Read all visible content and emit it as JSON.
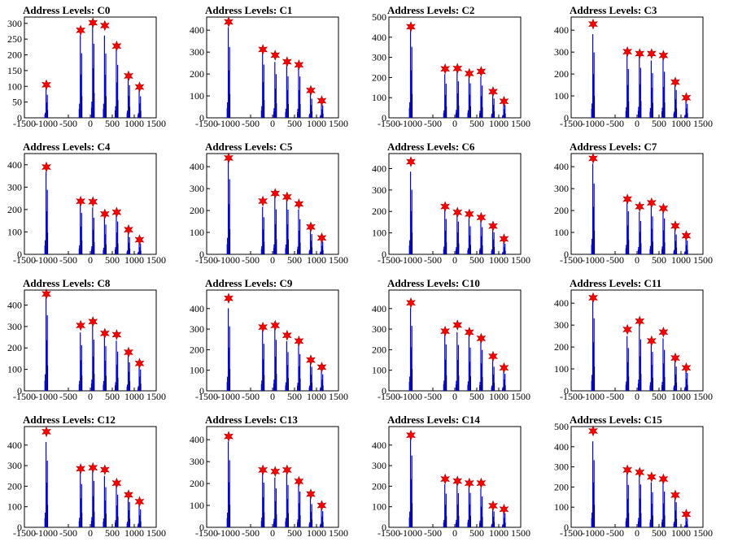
{
  "chart_data": [
    {
      "type": "histogram",
      "title": "Address Levels: C0",
      "xlim": [
        -1500,
        1500
      ],
      "ylim": [
        0,
        320
      ],
      "yticks": [
        0,
        50,
        100,
        150,
        200,
        250,
        300
      ],
      "xtick_labels": [
        "-1500",
        "-1000",
        "-500",
        "0",
        "500",
        "1000",
        "1500"
      ],
      "peaks": [
        {
          "x": -1000,
          "y": 105
        },
        {
          "x": -220,
          "y": 278
        },
        {
          "x": 60,
          "y": 302
        },
        {
          "x": 330,
          "y": 293
        },
        {
          "x": 600,
          "y": 228
        },
        {
          "x": 870,
          "y": 133
        },
        {
          "x": 1120,
          "y": 98
        }
      ]
    },
    {
      "type": "histogram",
      "title": "Address Levels: C1",
      "xlim": [
        -1500,
        1500
      ],
      "ylim": [
        0,
        460
      ],
      "yticks": [
        0,
        100,
        200,
        300,
        400
      ],
      "xtick_labels": [
        "-1500",
        "-1000",
        "-500",
        "0",
        "500",
        "1000",
        "1500"
      ],
      "peaks": [
        {
          "x": -1000,
          "y": 438
        },
        {
          "x": -220,
          "y": 312
        },
        {
          "x": 60,
          "y": 286
        },
        {
          "x": 330,
          "y": 256
        },
        {
          "x": 600,
          "y": 242
        },
        {
          "x": 870,
          "y": 125
        },
        {
          "x": 1120,
          "y": 78
        }
      ]
    },
    {
      "type": "histogram",
      "title": "Address Levels: C2",
      "xlim": [
        -1500,
        1500
      ],
      "ylim": [
        0,
        500
      ],
      "yticks": [
        0,
        100,
        200,
        300,
        400,
        500
      ],
      "xtick_labels": [
        "-1500",
        "-1000",
        "-500",
        "0",
        "500",
        "1000",
        "1500"
      ],
      "peaks": [
        {
          "x": -1000,
          "y": 452
        },
        {
          "x": -220,
          "y": 243
        },
        {
          "x": 60,
          "y": 245
        },
        {
          "x": 330,
          "y": 220
        },
        {
          "x": 600,
          "y": 230
        },
        {
          "x": 870,
          "y": 130
        },
        {
          "x": 1120,
          "y": 82
        }
      ]
    },
    {
      "type": "histogram",
      "title": "Address Levels: C3",
      "xlim": [
        -1500,
        1500
      ],
      "ylim": [
        0,
        460
      ],
      "yticks": [
        0,
        100,
        200,
        300,
        400
      ],
      "xtick_labels": [
        "-1500",
        "-1000",
        "-500",
        "0",
        "500",
        "1000",
        "1500"
      ],
      "peaks": [
        {
          "x": -1000,
          "y": 428
        },
        {
          "x": -220,
          "y": 302
        },
        {
          "x": 60,
          "y": 293
        },
        {
          "x": 330,
          "y": 293
        },
        {
          "x": 600,
          "y": 285
        },
        {
          "x": 870,
          "y": 163
        },
        {
          "x": 1120,
          "y": 92
        }
      ]
    },
    {
      "type": "histogram",
      "title": "Address Levels: C4",
      "xlim": [
        -1500,
        1500
      ],
      "ylim": [
        0,
        450
      ],
      "yticks": [
        0,
        100,
        200,
        300,
        400
      ],
      "xtick_labels": [
        "-1500",
        "-1000",
        "-500",
        "0",
        "500",
        "1000",
        "1500"
      ],
      "peaks": [
        {
          "x": -1000,
          "y": 390
        },
        {
          "x": -220,
          "y": 237
        },
        {
          "x": 60,
          "y": 235
        },
        {
          "x": 330,
          "y": 180
        },
        {
          "x": 600,
          "y": 188
        },
        {
          "x": 870,
          "y": 110
        },
        {
          "x": 1120,
          "y": 65
        }
      ]
    },
    {
      "type": "histogram",
      "title": "Address Levels: C5",
      "xlim": [
        -1500,
        1500
      ],
      "ylim": [
        0,
        460
      ],
      "yticks": [
        0,
        100,
        200,
        300,
        400
      ],
      "xtick_labels": [
        "-1500",
        "-1000",
        "-500",
        "0",
        "500",
        "1000",
        "1500"
      ],
      "peaks": [
        {
          "x": -1000,
          "y": 440
        },
        {
          "x": -220,
          "y": 243
        },
        {
          "x": 60,
          "y": 278
        },
        {
          "x": 330,
          "y": 262
        },
        {
          "x": 600,
          "y": 230
        },
        {
          "x": 870,
          "y": 125
        },
        {
          "x": 1120,
          "y": 75
        }
      ]
    },
    {
      "type": "histogram",
      "title": "Address Levels: C6",
      "xlim": [
        -1500,
        1500
      ],
      "ylim": [
        0,
        470
      ],
      "yticks": [
        0,
        100,
        200,
        300,
        400
      ],
      "xtick_labels": [
        "-1500",
        "-1000",
        "-500",
        "0",
        "500",
        "1000",
        "1500"
      ],
      "peaks": [
        {
          "x": -1000,
          "y": 432
        },
        {
          "x": -220,
          "y": 223
        },
        {
          "x": 60,
          "y": 196
        },
        {
          "x": 330,
          "y": 188
        },
        {
          "x": 600,
          "y": 172
        },
        {
          "x": 870,
          "y": 132
        },
        {
          "x": 1120,
          "y": 72
        }
      ]
    },
    {
      "type": "histogram",
      "title": "Address Levels: C7",
      "xlim": [
        -1500,
        1500
      ],
      "ylim": [
        0,
        460
      ],
      "yticks": [
        0,
        100,
        200,
        300,
        400
      ],
      "xtick_labels": [
        "-1500",
        "-1000",
        "-500",
        "0",
        "500",
        "1000",
        "1500"
      ],
      "peaks": [
        {
          "x": -1000,
          "y": 438
        },
        {
          "x": -220,
          "y": 252
        },
        {
          "x": 60,
          "y": 218
        },
        {
          "x": 330,
          "y": 235
        },
        {
          "x": 600,
          "y": 210
        },
        {
          "x": 870,
          "y": 130
        },
        {
          "x": 1120,
          "y": 85
        }
      ]
    },
    {
      "type": "histogram",
      "title": "Address Levels: C8",
      "xlim": [
        -1500,
        1500
      ],
      "ylim": [
        0,
        470
      ],
      "yticks": [
        0,
        100,
        200,
        300,
        400
      ],
      "xtick_labels": [
        "-1500",
        "-1000",
        "-500",
        "0",
        "500",
        "1000",
        "1500"
      ],
      "peaks": [
        {
          "x": -1000,
          "y": 452
        },
        {
          "x": -220,
          "y": 305
        },
        {
          "x": 60,
          "y": 323
        },
        {
          "x": 330,
          "y": 268
        },
        {
          "x": 600,
          "y": 262
        },
        {
          "x": 870,
          "y": 180
        },
        {
          "x": 1120,
          "y": 128
        }
      ]
    },
    {
      "type": "histogram",
      "title": "Address Levels: C9",
      "xlim": [
        -1500,
        1500
      ],
      "ylim": [
        0,
        490
      ],
      "yticks": [
        0,
        100,
        200,
        300,
        400
      ],
      "xtick_labels": [
        "-1500",
        "-1000",
        "-500",
        "0",
        "500",
        "1000",
        "1500"
      ],
      "peaks": [
        {
          "x": -1000,
          "y": 450
        },
        {
          "x": -220,
          "y": 310
        },
        {
          "x": 60,
          "y": 318
        },
        {
          "x": 330,
          "y": 270
        },
        {
          "x": 600,
          "y": 242
        },
        {
          "x": 870,
          "y": 150
        },
        {
          "x": 1120,
          "y": 115
        }
      ]
    },
    {
      "type": "histogram",
      "title": "Address Levels: C10",
      "xlim": [
        -1500,
        1500
      ],
      "ylim": [
        0,
        490
      ],
      "yticks": [
        0,
        100,
        200,
        300,
        400
      ],
      "xtick_labels": [
        "-1500",
        "-1000",
        "-500",
        "0",
        "500",
        "1000",
        "1500"
      ],
      "peaks": [
        {
          "x": -1000,
          "y": 428
        },
        {
          "x": -220,
          "y": 290
        },
        {
          "x": 60,
          "y": 320
        },
        {
          "x": 330,
          "y": 285
        },
        {
          "x": 600,
          "y": 255
        },
        {
          "x": 870,
          "y": 168
        },
        {
          "x": 1120,
          "y": 112
        }
      ]
    },
    {
      "type": "histogram",
      "title": "Address Levels: C11",
      "xlim": [
        -1500,
        1500
      ],
      "ylim": [
        0,
        460
      ],
      "yticks": [
        0,
        100,
        200,
        300,
        400
      ],
      "xtick_labels": [
        "-1500",
        "-1000",
        "-500",
        "0",
        "500",
        "1000",
        "1500"
      ],
      "peaks": [
        {
          "x": -1000,
          "y": 425
        },
        {
          "x": -220,
          "y": 280
        },
        {
          "x": 60,
          "y": 318
        },
        {
          "x": 330,
          "y": 228
        },
        {
          "x": 600,
          "y": 268
        },
        {
          "x": 870,
          "y": 150
        },
        {
          "x": 1120,
          "y": 105
        }
      ]
    },
    {
      "type": "histogram",
      "title": "Address Levels: C12",
      "xlim": [
        -1500,
        1500
      ],
      "ylim": [
        0,
        490
      ],
      "yticks": [
        0,
        100,
        200,
        300,
        400
      ],
      "xtick_labels": [
        "-1500",
        "-1000",
        "-500",
        "0",
        "500",
        "1000",
        "1500"
      ],
      "peaks": [
        {
          "x": -1000,
          "y": 465
        },
        {
          "x": -220,
          "y": 285
        },
        {
          "x": 60,
          "y": 290
        },
        {
          "x": 330,
          "y": 280
        },
        {
          "x": 600,
          "y": 215
        },
        {
          "x": 870,
          "y": 158
        },
        {
          "x": 1120,
          "y": 125
        }
      ]
    },
    {
      "type": "histogram",
      "title": "Address Levels: C13",
      "xlim": [
        -1500,
        1500
      ],
      "ylim": [
        0,
        460
      ],
      "yticks": [
        0,
        100,
        200,
        300,
        400
      ],
      "xtick_labels": [
        "-1500",
        "-1000",
        "-500",
        "0",
        "500",
        "1000",
        "1500"
      ],
      "peaks": [
        {
          "x": -1000,
          "y": 415
        },
        {
          "x": -220,
          "y": 262
        },
        {
          "x": 60,
          "y": 255
        },
        {
          "x": 330,
          "y": 262
        },
        {
          "x": 600,
          "y": 210
        },
        {
          "x": 870,
          "y": 152
        },
        {
          "x": 1120,
          "y": 100
        }
      ]
    },
    {
      "type": "histogram",
      "title": "Address Levels: C14",
      "xlim": [
        -1500,
        1500
      ],
      "ylim": [
        0,
        490
      ],
      "yticks": [
        0,
        100,
        200,
        300,
        400
      ],
      "xtick_labels": [
        "-1500",
        "-1000",
        "-500",
        "0",
        "500",
        "1000",
        "1500"
      ],
      "peaks": [
        {
          "x": -1000,
          "y": 448
        },
        {
          "x": -220,
          "y": 235
        },
        {
          "x": 60,
          "y": 225
        },
        {
          "x": 330,
          "y": 215
        },
        {
          "x": 600,
          "y": 215
        },
        {
          "x": 870,
          "y": 105
        },
        {
          "x": 1120,
          "y": 88
        }
      ]
    },
    {
      "type": "histogram",
      "title": "Address Levels: C15",
      "xlim": [
        -1500,
        1500
      ],
      "ylim": [
        0,
        500
      ],
      "yticks": [
        0,
        100,
        200,
        300,
        400,
        500
      ],
      "xtick_labels": [
        "-1500",
        "-1000",
        "-500",
        "0",
        "500",
        "1000",
        "1500"
      ],
      "peaks": [
        {
          "x": -1000,
          "y": 478
        },
        {
          "x": -220,
          "y": 285
        },
        {
          "x": 60,
          "y": 273
        },
        {
          "x": 330,
          "y": 250
        },
        {
          "x": 600,
          "y": 240
        },
        {
          "x": 870,
          "y": 160
        },
        {
          "x": 1120,
          "y": 65
        }
      ]
    }
  ],
  "colors": {
    "histogram": "#0000ff",
    "marker": "#ff0000",
    "outline": "#000000"
  }
}
